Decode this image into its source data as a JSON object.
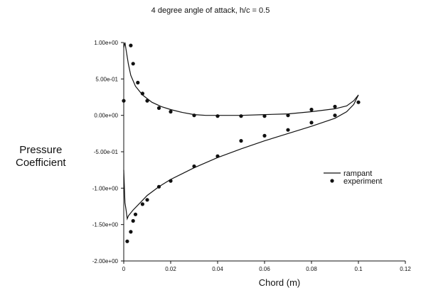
{
  "chart_data": {
    "type": "line",
    "title": "4 degree angle of attack, h/c = 0.5",
    "xlabel": "Chord (m)",
    "ylabel_line1": "Pressure",
    "ylabel_line2": "Coefficient",
    "xlim": [
      0,
      0.12
    ],
    "ylim": [
      -2.0,
      1.0
    ],
    "x_ticks": [
      "0",
      "0.02",
      "0.04",
      "0.06",
      "0.08",
      "0.1",
      "0.12"
    ],
    "y_ticks": [
      "1.00e+00",
      "5.00e-01",
      "0.00e+00",
      "-5.00e-01",
      "-1.00e+00",
      "-1.50e+00",
      "-2.00e+00"
    ],
    "legend_position": "right",
    "grid": false,
    "series": [
      {
        "name": "rampant",
        "style": "line",
        "segments": [
          [
            [
              0.0,
              0.93
            ],
            [
              0.0005,
              1.0
            ],
            [
              0.001,
              0.9
            ],
            [
              0.002,
              0.7
            ],
            [
              0.003,
              0.55
            ],
            [
              0.005,
              0.4
            ],
            [
              0.008,
              0.28
            ],
            [
              0.012,
              0.18
            ],
            [
              0.016,
              0.12
            ],
            [
              0.02,
              0.08
            ],
            [
              0.025,
              0.04
            ],
            [
              0.03,
              0.01
            ],
            [
              0.035,
              0.0
            ],
            [
              0.04,
              0.0
            ],
            [
              0.05,
              0.0
            ],
            [
              0.06,
              0.01
            ],
            [
              0.07,
              0.02
            ],
            [
              0.08,
              0.05
            ],
            [
              0.09,
              0.09
            ],
            [
              0.095,
              0.13
            ],
            [
              0.098,
              0.2
            ],
            [
              0.1,
              0.28
            ]
          ],
          [
            [
              0.0,
              -0.75
            ],
            [
              0.0005,
              -1.2
            ],
            [
              0.001,
              -1.3
            ],
            [
              0.0015,
              -1.42
            ],
            [
              0.002,
              -1.38
            ],
            [
              0.004,
              -1.3
            ],
            [
              0.007,
              -1.2
            ],
            [
              0.01,
              -1.1
            ],
            [
              0.015,
              -0.98
            ],
            [
              0.02,
              -0.88
            ],
            [
              0.03,
              -0.72
            ],
            [
              0.04,
              -0.58
            ],
            [
              0.05,
              -0.46
            ],
            [
              0.06,
              -0.35
            ],
            [
              0.07,
              -0.25
            ],
            [
              0.08,
              -0.15
            ],
            [
              0.09,
              -0.04
            ],
            [
              0.095,
              0.05
            ],
            [
              0.098,
              0.15
            ],
            [
              0.1,
              0.28
            ]
          ]
        ]
      },
      {
        "name": "experiment",
        "style": "marker",
        "points": [
          [
            0.0,
            0.2
          ],
          [
            0.003,
            0.96
          ],
          [
            0.004,
            0.71
          ],
          [
            0.006,
            0.45
          ],
          [
            0.008,
            0.3
          ],
          [
            0.01,
            0.2
          ],
          [
            0.015,
            0.1
          ],
          [
            0.02,
            0.05
          ],
          [
            0.03,
            0.0
          ],
          [
            0.04,
            -0.01
          ],
          [
            0.05,
            -0.01
          ],
          [
            0.06,
            -0.01
          ],
          [
            0.07,
            0.0
          ],
          [
            0.08,
            0.08
          ],
          [
            0.09,
            0.12
          ],
          [
            0.1,
            0.18
          ],
          [
            0.0015,
            -1.73
          ],
          [
            0.003,
            -1.6
          ],
          [
            0.004,
            -1.45
          ],
          [
            0.005,
            -1.36
          ],
          [
            0.008,
            -1.22
          ],
          [
            0.01,
            -1.16
          ],
          [
            0.015,
            -0.98
          ],
          [
            0.02,
            -0.9
          ],
          [
            0.03,
            -0.7
          ],
          [
            0.04,
            -0.56
          ],
          [
            0.05,
            -0.35
          ],
          [
            0.06,
            -0.28
          ],
          [
            0.07,
            -0.2
          ],
          [
            0.08,
            -0.1
          ],
          [
            0.09,
            0.0
          ]
        ]
      }
    ]
  }
}
